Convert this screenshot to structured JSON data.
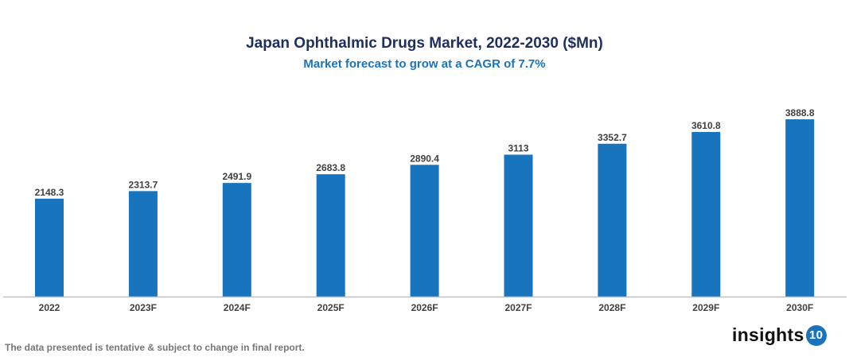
{
  "chart_data": {
    "type": "bar",
    "title": "Japan Ophthalmic Drugs Market, 2022-2030 ($Mn)",
    "subtitle": "Market forecast to grow at a CAGR of 7.7%",
    "categories": [
      "2022",
      "2023F",
      "2024F",
      "2025F",
      "2026F",
      "2027F",
      "2028F",
      "2029F",
      "2030F"
    ],
    "values": [
      2148.3,
      2313.7,
      2491.9,
      2683.8,
      2890.4,
      3113,
      3352.7,
      3610.8,
      3888.8
    ],
    "data_labels": [
      "2148.3",
      "2313.7",
      "2491.9",
      "2683.8",
      "2890.4",
      "3113",
      "3352.7",
      "3610.8",
      "3888.8"
    ],
    "xlabel": "",
    "ylabel": "",
    "ylim": [
      0,
      4500
    ],
    "grid": false,
    "y_axis_visible": false,
    "bar_color": "#1874bd"
  },
  "footnote": "The data presented is tentative & subject to change in final report.",
  "logo": {
    "text": "insights",
    "badge": "10"
  }
}
